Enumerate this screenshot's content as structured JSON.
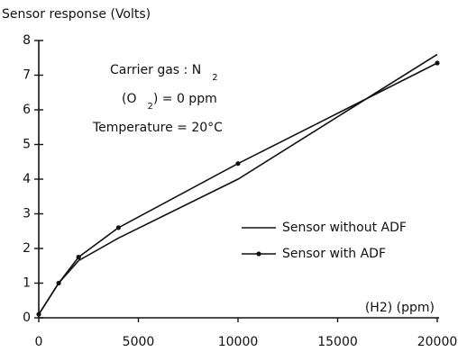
{
  "chart_data": {
    "type": "line",
    "y_label": "Sensor response (Volts)",
    "x_label": "(H2) (ppm)",
    "annotations": [
      [
        "Carrier gas : N",
        "2"
      ],
      [
        "(O",
        "2",
        ") = 0 ppm"
      ],
      [
        "Temperature = 20°C"
      ]
    ],
    "x": [
      0,
      1000,
      2000,
      4000,
      10000,
      20000
    ],
    "series": [
      {
        "name": "Sensor without ADF",
        "color": "#111111",
        "marker": false,
        "values": [
          0.1,
          1.0,
          1.65,
          2.3,
          4.0,
          7.6
        ]
      },
      {
        "name": "Sensor with ADF",
        "color": "#111111",
        "marker": true,
        "values": [
          0.1,
          1.0,
          1.75,
          2.6,
          4.45,
          7.35
        ]
      }
    ],
    "xlim": [
      0,
      20000
    ],
    "xticks": [
      0,
      5000,
      10000,
      15000,
      20000
    ],
    "ylim": [
      0,
      8
    ],
    "yticks": [
      0,
      1,
      2,
      3,
      4,
      5,
      6,
      7,
      8
    ],
    "grid": false
  }
}
